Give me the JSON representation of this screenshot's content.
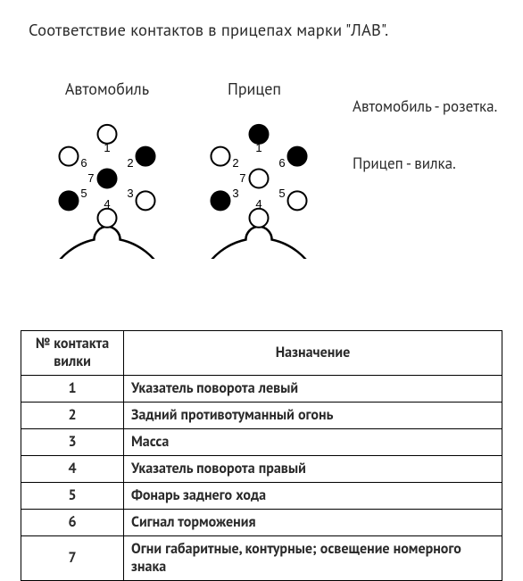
{
  "title": "Соответствие контактов в прицепах марки \"ЛАВ\".",
  "connectors": {
    "car": {
      "label": "Автомобиль"
    },
    "trailer": {
      "label": "Прицеп"
    }
  },
  "side_notes": {
    "car": "Автомобиль - розетка.",
    "trailer": "Прицеп - вилка."
  },
  "diagram": {
    "outer_radius": 70,
    "outer_stroke_w": 2.5,
    "pin_radius": 10.5,
    "pin_stroke_w": 2,
    "pin_ring": 54,
    "label_offset": 15,
    "label_fontsize": 13,
    "colors": {
      "stroke": "#000000",
      "fill_open": "#ffffff",
      "fill_solid": "#000000",
      "bg": "#ffffff"
    },
    "car": {
      "notch_angle_deg": 270,
      "pins": [
        {
          "n": 1,
          "angle_deg": 90,
          "filled": false
        },
        {
          "n": 2,
          "angle_deg": 30,
          "filled": true
        },
        {
          "n": 3,
          "angle_deg": 330,
          "filled": false
        },
        {
          "n": 4,
          "angle_deg": 270,
          "filled": false
        },
        {
          "n": 5,
          "angle_deg": 210,
          "filled": true
        },
        {
          "n": 6,
          "angle_deg": 150,
          "filled": false
        },
        {
          "n": 7,
          "angle_deg": 0,
          "filled": true,
          "center": true
        }
      ]
    },
    "trailer": {
      "notch_angle_deg": 270,
      "pins": [
        {
          "n": 1,
          "angle_deg": 90,
          "filled": true
        },
        {
          "n": 2,
          "angle_deg": 150,
          "filled": false
        },
        {
          "n": 3,
          "angle_deg": 210,
          "filled": true
        },
        {
          "n": 4,
          "angle_deg": 270,
          "filled": false
        },
        {
          "n": 5,
          "angle_deg": 330,
          "filled": false
        },
        {
          "n": 6,
          "angle_deg": 30,
          "filled": true
        },
        {
          "n": 7,
          "angle_deg": 0,
          "filled": false,
          "center": true
        }
      ]
    }
  },
  "table": {
    "columns": [
      "№ контакта вилки",
      "Назначение"
    ],
    "rows": [
      [
        "1",
        "Указатель поворота левый"
      ],
      [
        "2",
        "Задний противотуманный огонь"
      ],
      [
        "3",
        "Масса"
      ],
      [
        "4",
        "Указатель поворота правый"
      ],
      [
        "5",
        "Фонарь заднего хода"
      ],
      [
        "6",
        "Сигнал торможения"
      ],
      [
        "7",
        "Огни габаритные, контурные; освещение номерного знака"
      ]
    ]
  }
}
